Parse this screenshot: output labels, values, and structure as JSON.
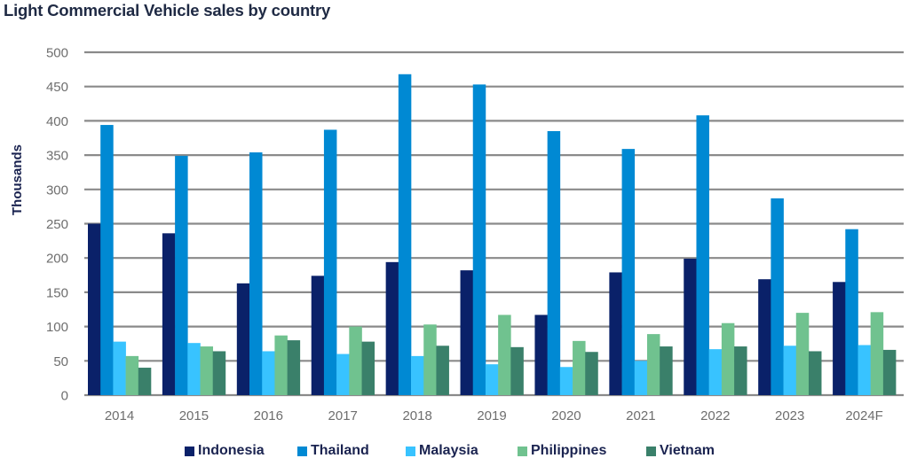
{
  "chart_data": {
    "type": "bar",
    "title": "Light Commercial Vehicle sales by country",
    "xlabel": "",
    "ylabel": "Thousands",
    "ylim": [
      0,
      500
    ],
    "yticks": [
      "0",
      "50",
      "100",
      "150",
      "200",
      "250",
      "300",
      "350",
      "400",
      "450",
      "500"
    ],
    "ytick_values": [
      0,
      50,
      100,
      150,
      200,
      250,
      300,
      350,
      400,
      450,
      500
    ],
    "grid": true,
    "legend_position": "bottom",
    "categories": [
      "2014",
      "2015",
      "2016",
      "2017",
      "2018",
      "2019",
      "2020",
      "2021",
      "2022",
      "2023",
      "2024F"
    ],
    "series": [
      {
        "name": "Indonesia",
        "color": "#0a2169",
        "values": [
          250,
          236,
          163,
          174,
          194,
          182,
          117,
          179,
          199,
          169,
          165
        ]
      },
      {
        "name": "Thailand",
        "color": "#0089d3",
        "values": [
          394,
          349,
          354,
          387,
          468,
          453,
          385,
          359,
          408,
          287,
          242
        ]
      },
      {
        "name": "Malaysia",
        "color": "#38c3ff",
        "values": [
          78,
          76,
          64,
          60,
          57,
          45,
          41,
          50,
          67,
          72,
          73
        ]
      },
      {
        "name": "Philippines",
        "color": "#70c28f",
        "values": [
          57,
          71,
          87,
          100,
          103,
          117,
          79,
          89,
          105,
          120,
          121
        ]
      },
      {
        "name": "Vietnam",
        "color": "#3a806a",
        "values": [
          40,
          64,
          80,
          78,
          72,
          70,
          63,
          71,
          71,
          64,
          66
        ]
      }
    ]
  }
}
